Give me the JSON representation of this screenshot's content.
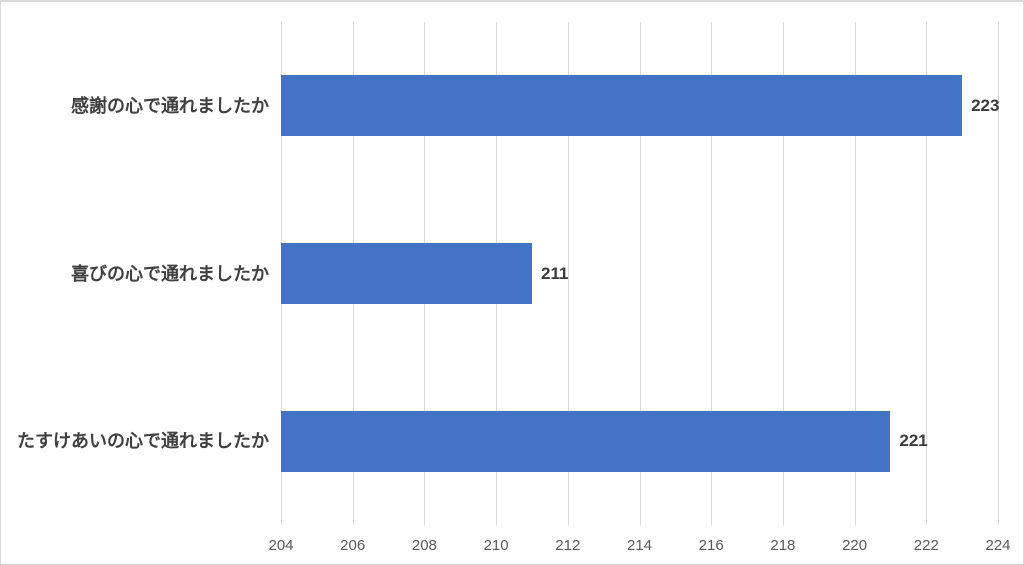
{
  "chart_data": {
    "type": "bar",
    "orientation": "horizontal",
    "title": "",
    "categories": [
      "感謝の心で通れましたか",
      "喜びの心で通れましたか",
      "たすけあいの心で通れましたか"
    ],
    "values": [
      223,
      211,
      221
    ],
    "data_labels": [
      "223",
      "211",
      "221"
    ],
    "xlabel": "",
    "ylabel": "",
    "xlim": [
      204,
      224
    ],
    "x_ticks": [
      204,
      206,
      208,
      210,
      212,
      214,
      216,
      218,
      220,
      222,
      224
    ],
    "grid": "vertical-only",
    "legend_position": "none",
    "data_labels_shown": true,
    "colors": {
      "bar": "#4472C4",
      "gridline": "#D9D9D9",
      "tick_label": "#595959",
      "category_label": "#404040",
      "data_label": "#3B3B3B",
      "chart_border": "#D9D9D9",
      "background": "#FFFFFF"
    }
  }
}
